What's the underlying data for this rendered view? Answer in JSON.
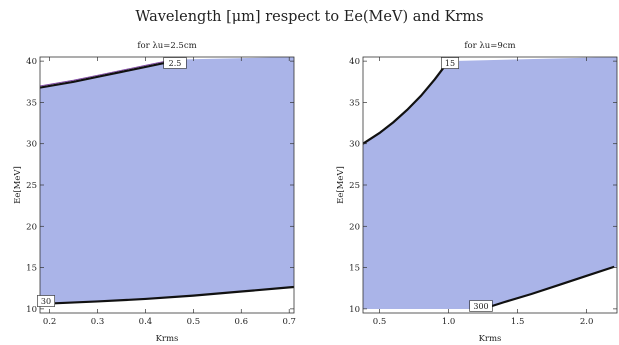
{
  "title": "Wavelength [μm] respect to Ee(MeV) and Krms",
  "chart_data": [
    {
      "type": "area",
      "title": "for λu=2.5cm",
      "xlabel": "Krms",
      "ylabel": "Ee[MeV]",
      "xlim": [
        0.18,
        0.71
      ],
      "ylim": [
        9.5,
        40.5
      ],
      "xticks": [
        0.2,
        0.3,
        0.4,
        0.5,
        0.6,
        0.7
      ],
      "yticks": [
        10,
        15,
        20,
        25,
        30,
        35,
        40
      ],
      "tick_labels_x": [
        "0.2",
        "0.3",
        "0.4",
        "0.5",
        "0.6",
        "0.7"
      ],
      "tick_labels_y": [
        "10",
        "15",
        "20",
        "25",
        "30",
        "35",
        "40"
      ],
      "fill_color": "#aab4e8",
      "upper_contour": {
        "label": "2.5",
        "points": [
          [
            0.18,
            36.8
          ],
          [
            0.25,
            37.5
          ],
          [
            0.3,
            38.1
          ],
          [
            0.35,
            38.7
          ],
          [
            0.4,
            39.3
          ],
          [
            0.45,
            39.9
          ],
          [
            0.47,
            40.2
          ]
        ]
      },
      "lower_contour": {
        "label": "30",
        "points": [
          [
            0.18,
            10.6
          ],
          [
            0.3,
            10.9
          ],
          [
            0.4,
            11.2
          ],
          [
            0.5,
            11.6
          ],
          [
            0.6,
            12.1
          ],
          [
            0.7,
            12.6
          ],
          [
            0.71,
            12.65
          ]
        ]
      }
    },
    {
      "type": "area",
      "title": "for λu=9cm",
      "xlabel": "Krms",
      "ylabel": "Ee[MeV]",
      "xlim": [
        0.38,
        2.22
      ],
      "ylim": [
        9.5,
        40.5
      ],
      "xticks": [
        0.5,
        1.0,
        1.5,
        2.0
      ],
      "yticks": [
        10,
        15,
        20,
        25,
        30,
        35,
        40
      ],
      "tick_labels_x": [
        "0.5",
        "1.0",
        "1.5",
        "2.0"
      ],
      "tick_labels_y": [
        "10",
        "15",
        "20",
        "25",
        "30",
        "35",
        "40"
      ],
      "fill_color": "#aab4e8",
      "upper_contour": {
        "label": "15",
        "points": [
          [
            0.38,
            30.0
          ],
          [
            0.5,
            31.3
          ],
          [
            0.6,
            32.6
          ],
          [
            0.7,
            34.1
          ],
          [
            0.8,
            35.8
          ],
          [
            0.9,
            37.8
          ],
          [
            0.95,
            38.9
          ],
          [
            1.0,
            40.0
          ]
        ]
      },
      "lower_contour": {
        "label": "300",
        "points": [
          [
            1.25,
            10.0
          ],
          [
            1.4,
            10.8
          ],
          [
            1.6,
            11.8
          ],
          [
            1.8,
            12.9
          ],
          [
            2.0,
            14.0
          ],
          [
            2.2,
            15.1
          ]
        ]
      }
    }
  ]
}
